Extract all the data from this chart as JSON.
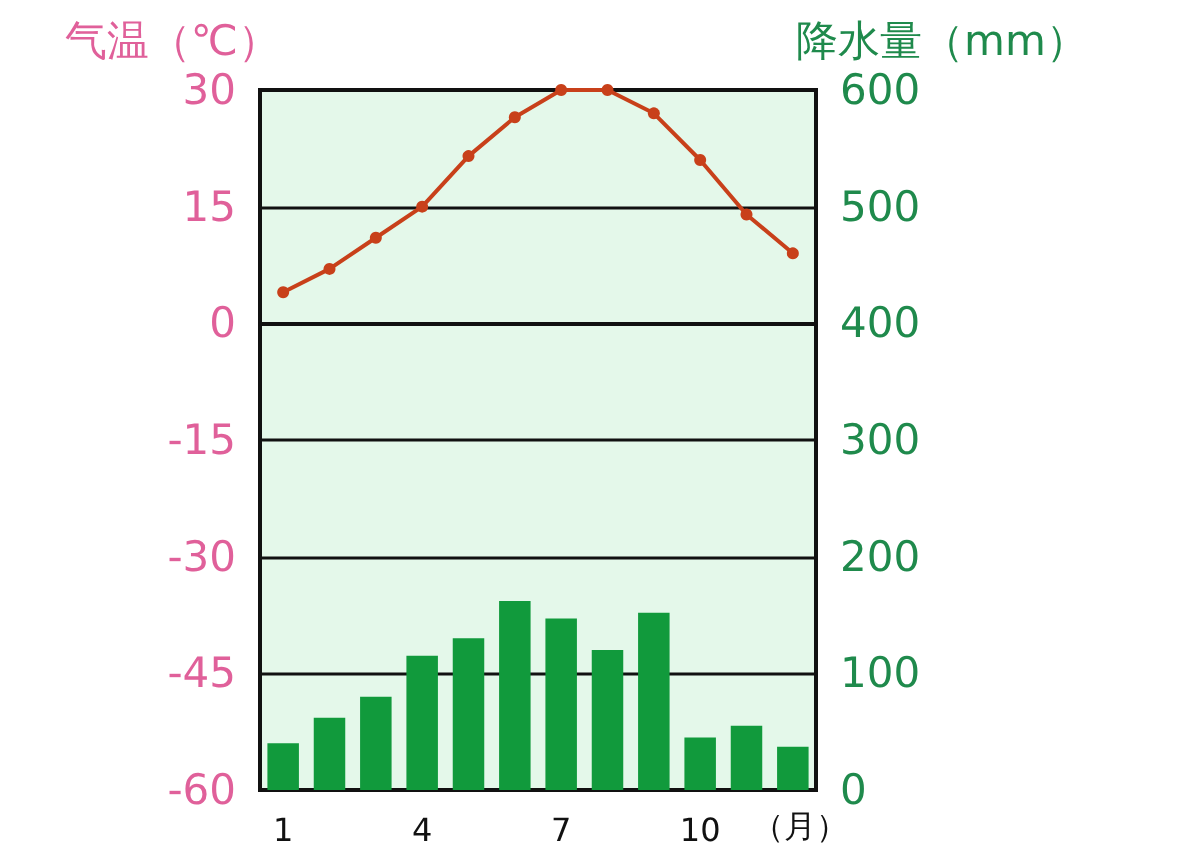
{
  "chart_data": {
    "type": "bar",
    "ylabel": "气温（℃）",
    "y2label": "降水量（mm）",
    "xlabel": "（月）",
    "categories": [
      "1",
      null,
      null,
      "4",
      null,
      null,
      "7",
      null,
      null,
      "10",
      null,
      null
    ],
    "series": [
      {
        "type": "line",
        "axis": "y",
        "color": "#c8401a",
        "values": [
          4,
          7,
          11,
          15,
          21.5,
          26.5,
          30,
          30,
          27,
          21,
          14,
          9
        ]
      },
      {
        "axis": "y2",
        "color": "#119a3c",
        "values": [
          40,
          62,
          80,
          115,
          130,
          162,
          147,
          120,
          152,
          45,
          55,
          37
        ]
      }
    ],
    "ylim": [
      -60,
      30
    ],
    "yticks": [
      -60,
      -45,
      -30,
      -15,
      0,
      15,
      30
    ],
    "y2lim": [
      0,
      600
    ],
    "y2ticks": [
      0,
      100,
      200,
      300,
      400,
      500,
      600
    ],
    "grid": "y",
    "marker": "circle",
    "line_style": "solid"
  }
}
